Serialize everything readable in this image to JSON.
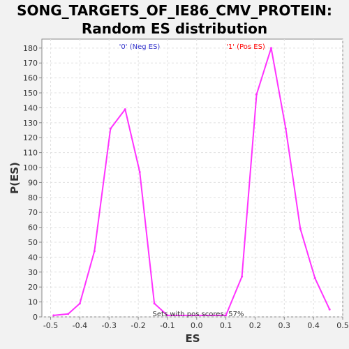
{
  "title_lines": [
    "SONG_TARGETS_OF_IE86_CMV_PROTEIN:",
    "Random ES distribution"
  ],
  "chart_data": {
    "type": "line",
    "title": "SONG_TARGETS_OF_IE86_CMV_PROTEIN: Random ES distribution",
    "xlabel": "ES",
    "ylabel": "P(ES)",
    "xlim": [
      -0.53,
      0.5
    ],
    "ylim": [
      0,
      186
    ],
    "xticks": [
      -0.5,
      -0.4,
      -0.3,
      -0.2,
      -0.1,
      0.0,
      0.1,
      0.2,
      0.3,
      0.4,
      0.5
    ],
    "xtick_labels": [
      "-0.5",
      "-0.4",
      "-0.3",
      "-0.2",
      "-0.1",
      "0.0",
      "0.1",
      "0.2",
      "0.3",
      "0.4",
      "0.5"
    ],
    "yticks": [
      0,
      10,
      20,
      30,
      40,
      50,
      60,
      70,
      80,
      90,
      100,
      110,
      120,
      130,
      140,
      150,
      160,
      170,
      180
    ],
    "grid": true,
    "series": [
      {
        "color": "#ff33ff",
        "x": [
          -0.49,
          -0.44,
          -0.4,
          -0.35,
          -0.295,
          -0.245,
          -0.195,
          -0.145,
          -0.1,
          0.1,
          0.155,
          0.205,
          0.255,
          0.305,
          0.355,
          0.405,
          0.455
        ],
        "y": [
          1,
          2,
          9,
          44,
          126,
          139,
          97,
          9,
          1,
          1,
          27,
          149,
          180,
          126,
          59,
          26,
          5
        ]
      }
    ],
    "annotations": {
      "neg_label": "'0' (Neg ES)",
      "neg_color": "#3333cc",
      "pos_label": "'1' (Pos ES)",
      "pos_color": "#ff0000",
      "footer": "Sets with pos scores: 57%"
    }
  }
}
